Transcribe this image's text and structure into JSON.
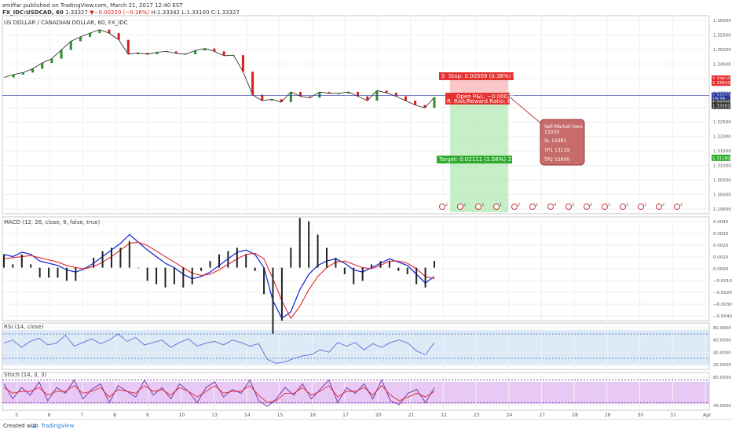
{
  "header": {
    "publisher_line": "zmiffar published on TradingView.com, March 21, 2017 12:40 EST",
    "symbol": "FX_IDC:USDCAD, 60",
    "open": "1.33327",
    "change": "▼−0.00220 (−0.16%)",
    "high": "H:1.33342",
    "low": "L:1.33100",
    "close": "C:1.33327"
  },
  "colors": {
    "up": "#2d8a2d",
    "down": "#d42020",
    "accent": "#2a3a9c",
    "macd": "#1c2fd6",
    "signal": "#e2262e",
    "rsi": "#5b6fd6",
    "stoch_k": "#6b2fa0",
    "stoch_d": "#e2262e"
  },
  "chart_data": [
    {
      "type": "line",
      "title": "US DOLLAR / CANADIAN DOLLAR, 60, FX_IDC",
      "x_ticks": [
        "3",
        "6",
        "7",
        "8",
        "9",
        "10",
        "13",
        "14",
        "15",
        "16",
        "17",
        "20",
        "21",
        "22",
        "23",
        "24",
        "27",
        "28",
        "29",
        "30",
        "31",
        "Apr"
      ],
      "y_ticks": [
        "1.36000",
        "1.35500",
        "1.35000",
        "1.34500",
        "1.34000",
        "1.33500",
        "1.33000",
        "1.32500",
        "1.32000",
        "1.31500",
        "1.31000",
        "1.30500",
        "1.30000",
        "1.29500"
      ],
      "ylim": [
        1.2925,
        1.3608
      ],
      "series": [
        {
          "values": [
            1.3395,
            1.3405,
            1.3412,
            1.3425,
            1.3445,
            1.346,
            1.349,
            1.352,
            1.3535,
            1.3548,
            1.356,
            1.3548,
            1.3525,
            1.3475,
            1.348,
            1.3475,
            1.3482,
            1.3485,
            1.3478,
            1.3475,
            1.3488,
            1.3495,
            1.3485,
            1.347,
            1.3472,
            1.3415,
            1.3335,
            1.3315,
            1.332,
            1.331,
            1.3345,
            1.333,
            1.3325,
            1.3345,
            1.334,
            1.334,
            1.3345,
            1.333,
            1.3315,
            1.335,
            1.3342,
            1.333,
            1.3315,
            1.33,
            1.329,
            1.3327
          ]
        }
      ],
      "price_labels": {
        "stop": "1.33810",
        "stop2": "1.33810",
        "current": "1.33327",
        "time": "19:39",
        "avg": "1.33201",
        "entry": "1.33301",
        "target": "1.31180"
      },
      "position": {
        "stop_label": "Stop: 0.00509 (0.38%) 50.9",
        "pnl_label": "Open P&L: −0.00026",
        "ratio_label": "Risk/Reward Ratio: 8.45",
        "target_label": "Target: 0.02111 (1.58%) 211.1",
        "stop_level": 1.3381,
        "entry_level": 1.333,
        "target_level": 1.3118,
        "stop_tag": "S",
        "ratio_tag": "R"
      },
      "note": [
        "Sell Market here",
        "13330",
        "SL 13381",
        "TP1 13119",
        "TP2 12900"
      ],
      "event_markers": [
        "2",
        "2",
        "3",
        "1",
        "2",
        "2",
        "4",
        "2",
        "2",
        "1",
        "2",
        "2",
        "2",
        "2"
      ]
    },
    {
      "type": "line",
      "title": "MACD (12, 26, close, 9, false, true)",
      "y_ticks": [
        "0.0040",
        "0.0030",
        "0.0020",
        "0.0010",
        "0.0000",
        "−0.0010",
        "−0.0020",
        "−0.0030",
        "−0.0040"
      ],
      "ylim": [
        -0.0048,
        0.0046
      ],
      "series": [
        {
          "values": [
            0.0012,
            0.001,
            0.0014,
            0.0012,
            0.0006,
            0.0004,
            0.0002,
            -0.0002,
            -0.0004,
            -0.0001,
            0.0004,
            0.001,
            0.0016,
            0.0022,
            0.003,
            0.0023,
            0.0016,
            0.001,
            0.0004,
            0.0,
            -0.0006,
            -0.001,
            -0.0008,
            -0.0004,
            0.0002,
            0.0008,
            0.0014,
            0.0016,
            0.0012,
            0.0,
            -0.003,
            -0.0046,
            -0.004,
            -0.002,
            -0.0006,
            0.0002,
            0.0006,
            0.0008,
            0.0004,
            -0.0002,
            -0.0004,
            0.0,
            0.0004,
            0.0008,
            0.0005,
            0.0002,
            -0.0006,
            -0.0014,
            -0.0008
          ]
        },
        {
          "values": [
            0.0008,
            0.0009,
            0.001,
            0.0011,
            0.0009,
            0.0007,
            0.0005,
            0.0002,
            0.0,
            -0.0001,
            0.0001,
            0.0005,
            0.001,
            0.0016,
            0.0022,
            0.0023,
            0.002,
            0.0015,
            0.001,
            0.0005,
            0.0,
            -0.0005,
            -0.0007,
            -0.0006,
            -0.0002,
            0.0003,
            0.0008,
            0.0012,
            0.0013,
            0.0008,
            -0.001,
            -0.003,
            -0.0046,
            -0.0035,
            -0.002,
            -0.0008,
            0.0,
            0.0005,
            0.0006,
            0.0003,
            0.0,
            -0.0001,
            0.0002,
            0.0006,
            0.0006,
            0.0004,
            -0.0001,
            -0.0008,
            -0.001
          ]
        }
      ]
    },
    {
      "type": "line",
      "title": "RSI (14, close)",
      "y_ticks": [
        "80.0000",
        "60.0000",
        "40.0000",
        "20.0000"
      ],
      "ylim": [
        12,
        88
      ],
      "series": [
        {
          "values": [
            55,
            60,
            48,
            58,
            63,
            52,
            55,
            68,
            50,
            56,
            62,
            54,
            60,
            70,
            58,
            64,
            52,
            56,
            60,
            48,
            56,
            62,
            50,
            55,
            58,
            52,
            60,
            56,
            50,
            54,
            28,
            22,
            24,
            30,
            34,
            36,
            44,
            40,
            56,
            50,
            56,
            44,
            54,
            48,
            56,
            60,
            55,
            42,
            36,
            56
          ]
        }
      ]
    },
    {
      "type": "line",
      "title": "Stoch (14, 3, 3)",
      "y_ticks": [
        "80.0000",
        "40.0000"
      ],
      "ylim": [
        0,
        100
      ],
      "series": [
        {
          "values": [
            70,
            30,
            60,
            40,
            75,
            25,
            60,
            45,
            80,
            30,
            55,
            70,
            20,
            65,
            50,
            35,
            80,
            40,
            60,
            30,
            70,
            50,
            20,
            60,
            75,
            35,
            55,
            45,
            80,
            25,
            10,
            30,
            60,
            40,
            70,
            30,
            55,
            80,
            20,
            60,
            45,
            70,
            30,
            80,
            25,
            15,
            45,
            55,
            20,
            60
          ]
        },
        {
          "values": [
            60,
            45,
            50,
            50,
            60,
            40,
            50,
            50,
            65,
            45,
            50,
            60,
            35,
            55,
            50,
            45,
            65,
            50,
            55,
            40,
            60,
            50,
            35,
            50,
            65,
            45,
            50,
            50,
            65,
            40,
            20,
            25,
            45,
            45,
            60,
            40,
            50,
            65,
            35,
            50,
            50,
            60,
            40,
            65,
            40,
            25,
            35,
            45,
            35,
            50
          ]
        }
      ]
    }
  ],
  "footer": {
    "created_with": "Created with",
    "brand": "TradingView"
  }
}
